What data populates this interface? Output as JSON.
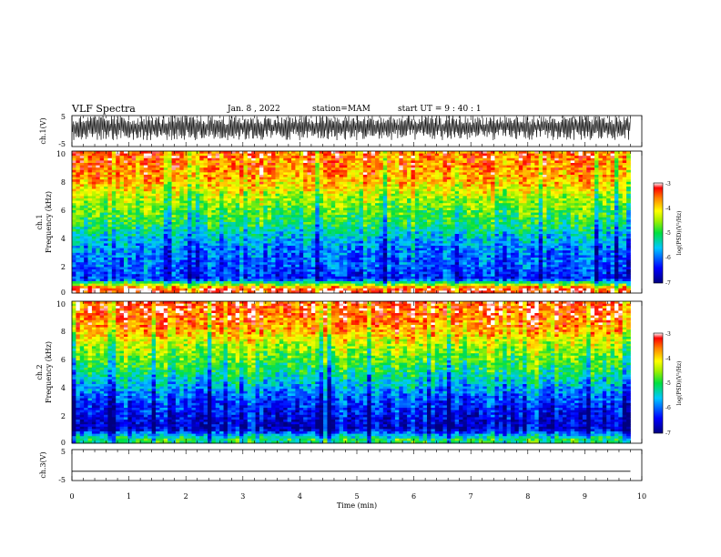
{
  "header": {
    "title": "VLF Spectra",
    "date": "Jan. 8 , 2022",
    "station": "station=MAM",
    "start": "start UT = 9 : 40 : 1"
  },
  "chart_data": [
    {
      "type": "line",
      "panel": "waveform-ch1",
      "ylabel": "ch.1(V)",
      "ylim": [
        -5,
        5
      ],
      "yticks": [
        "5",
        "-5"
      ],
      "description_series": "dense noise waveform between about -3 and 5 V"
    },
    {
      "type": "heatmap",
      "panel": "spectrogram-ch1",
      "ylabel": "ch.1\nFrequency (kHz)",
      "ylabel_line1": "ch.1",
      "ylabel_line2": "Frequency (kHz)",
      "ylim": [
        0,
        10
      ],
      "yticks": [
        "0",
        "2",
        "4",
        "6",
        "8",
        "10"
      ],
      "xlim": [
        0,
        9.8
      ],
      "colorbar": {
        "label": "log(PSD)(V²/Hz)",
        "range": [
          -7,
          -3
        ],
        "ticks": [
          "-3",
          "-4",
          "-5",
          "-6",
          "-7"
        ]
      },
      "band_profile": [
        {
          "freq_khz": 0.3,
          "log_psd": -3.2
        },
        {
          "freq_khz": 1,
          "log_psd": -6.3
        },
        {
          "freq_khz": 2,
          "log_psd": -6.0
        },
        {
          "freq_khz": 3,
          "log_psd": -5.9
        },
        {
          "freq_khz": 4,
          "log_psd": -5.5
        },
        {
          "freq_khz": 5,
          "log_psd": -5.0
        },
        {
          "freq_khz": 6,
          "log_psd": -4.7
        },
        {
          "freq_khz": 7,
          "log_psd": -4.3
        },
        {
          "freq_khz": 8,
          "log_psd": -3.8
        },
        {
          "freq_khz": 9,
          "log_psd": -3.6
        },
        {
          "freq_khz": 10,
          "log_psd": -3.5
        }
      ]
    },
    {
      "type": "heatmap",
      "panel": "spectrogram-ch2",
      "ylabel_line1": "ch.2",
      "ylabel_line2": "Frequency (kHz)",
      "ylim": [
        0,
        10
      ],
      "yticks": [
        "0",
        "2",
        "4",
        "6",
        "8",
        "10"
      ],
      "xlim": [
        0,
        9.8
      ],
      "colorbar": {
        "label": "log(PSD)(V²/Hz)",
        "range": [
          -7,
          -3
        ],
        "ticks": [
          "-3",
          "-4",
          "-5",
          "-6",
          "-7"
        ]
      },
      "band_profile": [
        {
          "freq_khz": 0.3,
          "log_psd": -5.0
        },
        {
          "freq_khz": 1,
          "log_psd": -6.6
        },
        {
          "freq_khz": 2,
          "log_psd": -6.4
        },
        {
          "freq_khz": 3,
          "log_psd": -6.1
        },
        {
          "freq_khz": 4,
          "log_psd": -5.6
        },
        {
          "freq_khz": 5,
          "log_psd": -5.1
        },
        {
          "freq_khz": 6,
          "log_psd": -4.7
        },
        {
          "freq_khz": 7,
          "log_psd": -4.3
        },
        {
          "freq_khz": 8,
          "log_psd": -3.7
        },
        {
          "freq_khz": 9,
          "log_psd": -3.4
        },
        {
          "freq_khz": 10,
          "log_psd": -3.3
        }
      ]
    },
    {
      "type": "line",
      "panel": "waveform-ch3",
      "ylabel": "ch.3(V)",
      "ylim": [
        -5,
        5
      ],
      "yticks": [
        "5",
        "-5"
      ],
      "series": [
        {
          "x": [
            0,
            9.8
          ],
          "y": [
            -2,
            -2
          ]
        }
      ]
    }
  ],
  "xaxis": {
    "label": "Time (min)",
    "xlim": [
      0,
      10
    ],
    "ticks": [
      "0",
      "1",
      "2",
      "3",
      "4",
      "5",
      "6",
      "7",
      "8",
      "9",
      "10"
    ]
  }
}
